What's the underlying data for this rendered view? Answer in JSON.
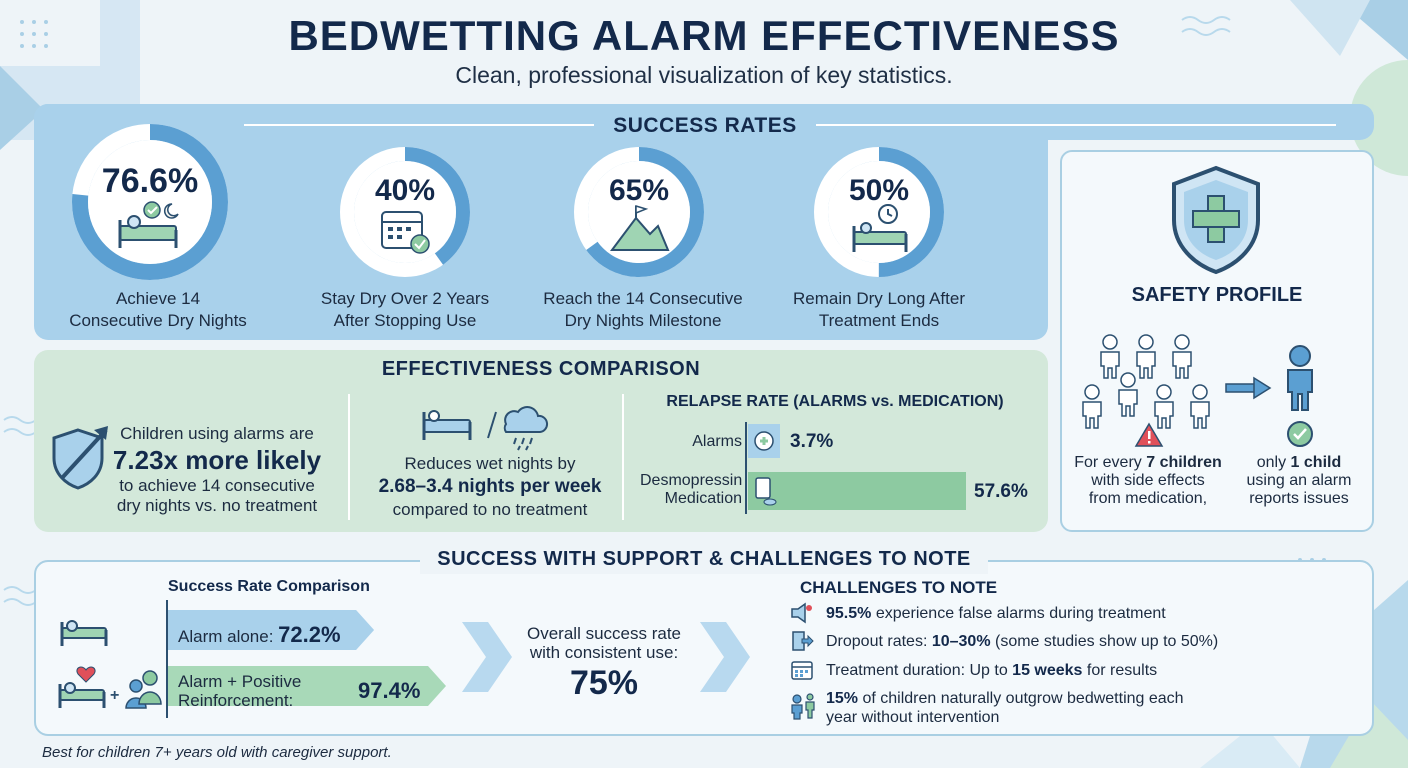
{
  "title": "BEDWETTING ALARM EFFECTIVENESS",
  "subtitle": "Clean, professional visualization of key statistics.",
  "success": {
    "heading": "SUCCESS RATES",
    "rings": [
      {
        "pct": "76.6%",
        "value": 76.6,
        "label1": "Achieve 14",
        "label2": "Consecutive Dry Nights",
        "icon": "bed-check-moon-icon"
      },
      {
        "pct": "40%",
        "value": 40,
        "label1": "Stay Dry Over 2 Years",
        "label2": "After Stopping Use",
        "icon": "calendar-check-icon"
      },
      {
        "pct": "65%",
        "value": 65,
        "label1": "Reach the 14 Consecutive",
        "label2": "Dry Nights Milestone",
        "icon": "mountain-flag-icon"
      },
      {
        "pct": "50%",
        "value": 50,
        "label1": "Remain Dry Long After",
        "label2": "Treatment Ends",
        "icon": "bed-clock-icon"
      }
    ]
  },
  "effectiveness": {
    "heading": "EFFECTIVENESS COMPARISON",
    "likely": {
      "line1": "Children using alarms are",
      "big": "7.23x more likely",
      "line3": "to achieve 14 consecutive",
      "line4": "dry nights vs. no treatment"
    },
    "wet": {
      "line1": "Reduces wet nights by",
      "big": "2.68–3.4 nights per week",
      "line3": "compared to no treatment"
    },
    "relapse": {
      "heading": "RELAPSE RATE (ALARMS vs. MEDICATION)",
      "alarms_label": "Alarms",
      "alarms_value": "3.7%",
      "alarms_num": 3.7,
      "med_label1": "Desmopressin",
      "med_label2": "Medication",
      "med_value": "57.6%",
      "med_num": 57.6
    }
  },
  "safety": {
    "heading": "SAFETY PROFILE",
    "left1": "For every ",
    "left_bold": "7 children",
    "left2": "with side effects",
    "left3": "from medication,",
    "right1": "only ",
    "right_bold": "1 child",
    "right2": "using an alarm",
    "right3": "reports issues"
  },
  "support": {
    "heading": "SUCCESS WITH SUPPORT & CHALLENGES TO NOTE",
    "comparison_heading": "Success Rate Comparison",
    "alarm_alone_label": "Alarm alone:",
    "alarm_alone_value": "72.2%",
    "alarm_plus_label1": "Alarm + Positive",
    "alarm_plus_label2": "Reinforcement:",
    "alarm_plus_value": "97.4%",
    "overall1": "Overall success rate",
    "overall2": "with consistent use:",
    "overall_value": "75%",
    "challenges_heading": "CHALLENGES TO NOTE",
    "challenges": [
      {
        "bold": "95.5%",
        "text": " experience false alarms during treatment",
        "icon": "alarm-speaker-icon"
      },
      {
        "pre": "Dropout rates: ",
        "bold": "10–30%",
        "text": " (some studies show up to 50%)",
        "icon": "exit-door-icon"
      },
      {
        "pre": "Treatment duration: Up to ",
        "bold": "15 weeks",
        "text": " for results",
        "icon": "calendar-icon"
      },
      {
        "bold": "15%",
        "text": " of children naturally outgrow bedwetting each",
        "text2": "year  without intervention",
        "icon": "growing-child-icon"
      }
    ]
  },
  "footer": "Best for children 7+ years old with caregiver support.",
  "colors": {
    "ring": "#5b9fd2",
    "ring_track": "#ffffff",
    "green": "#8dcaa1",
    "blue_bar": "#a9d1eb",
    "navy": "#13294b"
  }
}
